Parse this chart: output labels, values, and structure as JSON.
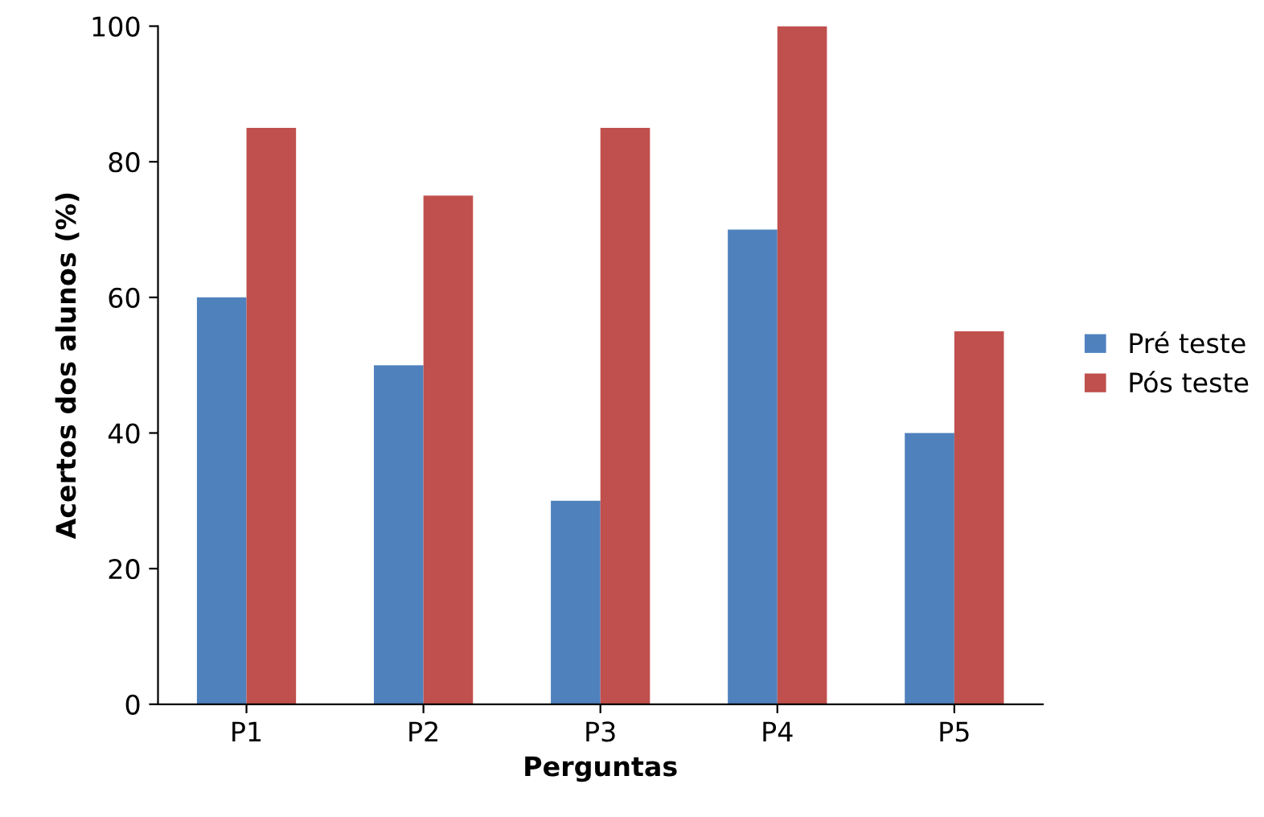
{
  "chart_data": {
    "type": "bar",
    "xlabel": "Perguntas",
    "ylabel": "Acertos dos alunos (%)",
    "categories": [
      "P1",
      "P2",
      "P3",
      "P4",
      "P5"
    ],
    "series": [
      {
        "name": "Pré teste",
        "color": "#4f81bd",
        "values": [
          60,
          50,
          30,
          70,
          40
        ]
      },
      {
        "name": "Pós teste",
        "color": "#c0504d",
        "values": [
          85,
          75,
          85,
          100,
          55
        ]
      }
    ],
    "ylim": [
      0,
      100
    ],
    "yticks": [
      0,
      20,
      40,
      60,
      80,
      100
    ],
    "grid": false,
    "legend": "right"
  }
}
